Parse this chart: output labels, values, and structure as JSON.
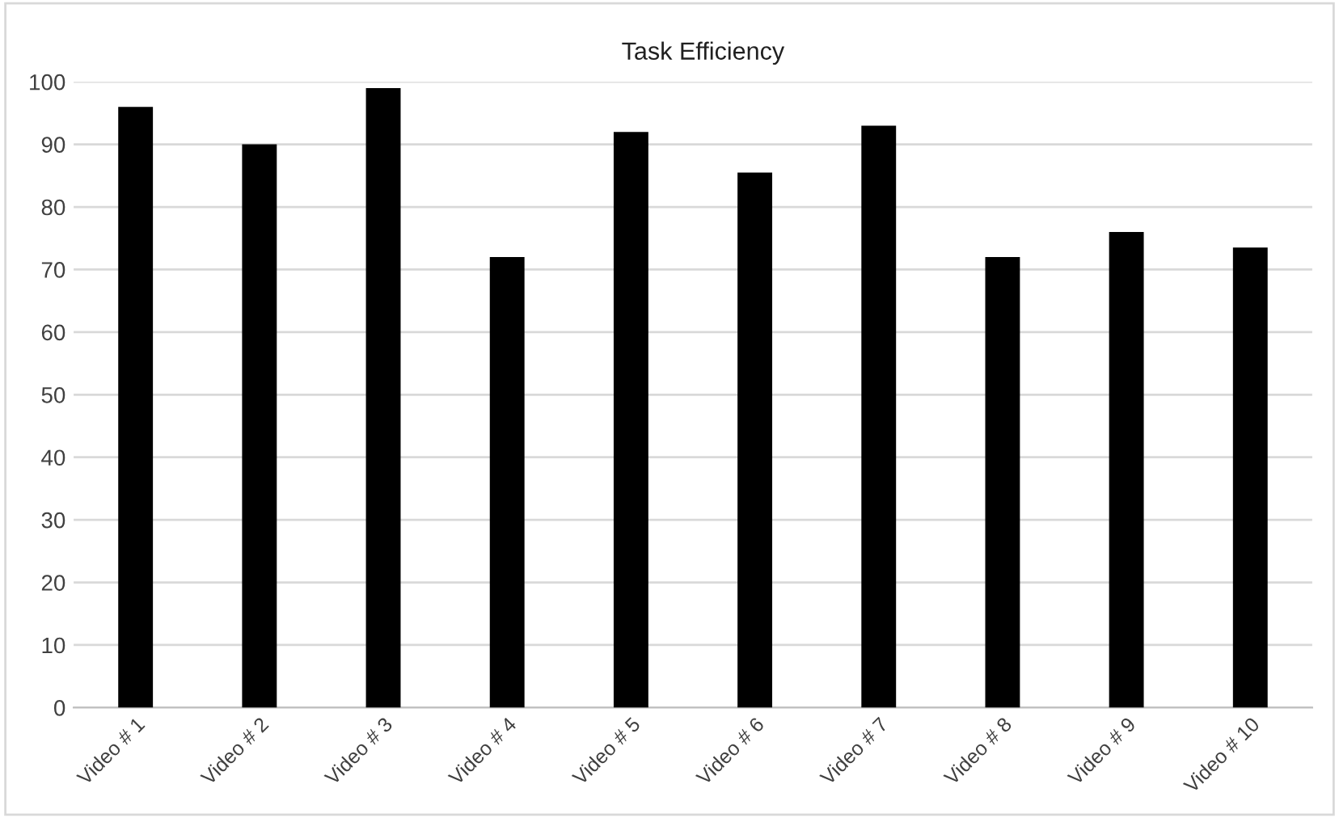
{
  "chart_data": {
    "type": "bar",
    "title": "Task Efficiency",
    "categories": [
      "Video # 1",
      "Video # 2",
      "Video # 3",
      "Video # 4",
      "Video # 5",
      "Video # 6",
      "Video # 7",
      "Video # 8",
      "Video # 9",
      "Video # 10"
    ],
    "values": [
      96,
      90,
      99,
      72,
      92,
      85.5,
      93,
      72,
      76,
      73.5
    ],
    "color": "#000000",
    "ylim": [
      0,
      100
    ],
    "yticks": [
      0,
      10,
      20,
      30,
      40,
      50,
      60,
      70,
      80,
      90,
      100
    ],
    "grid": "y"
  }
}
